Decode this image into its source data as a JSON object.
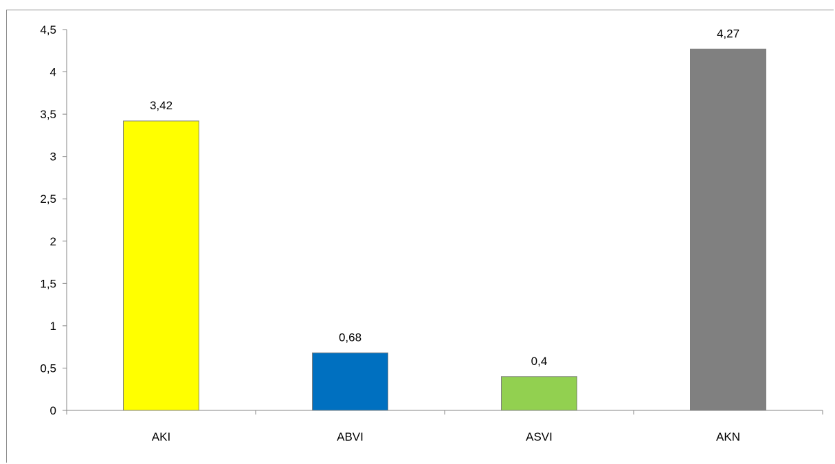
{
  "chart_data": {
    "type": "bar",
    "categories": [
      "AKI",
      "ABVI",
      "ASVI",
      "AKN"
    ],
    "values": [
      3.42,
      0.68,
      0.4,
      4.27
    ],
    "value_labels": [
      "3,42",
      "0,68",
      "0,4",
      "4,27"
    ],
    "colors": [
      "#ffff00",
      "#0070c0",
      "#92d050",
      "#808080"
    ],
    "ylim": [
      0,
      4.5
    ],
    "yticks": [
      0,
      0.5,
      1,
      1.5,
      2,
      2.5,
      3,
      3.5,
      4,
      4.5
    ],
    "ytick_labels": [
      "0",
      "0,5",
      "1",
      "1,5",
      "2",
      "2,5",
      "3",
      "3,5",
      "4",
      "4,5"
    ],
    "grid": false,
    "legend": "none",
    "title": "",
    "xlabel": "",
    "ylabel": ""
  }
}
